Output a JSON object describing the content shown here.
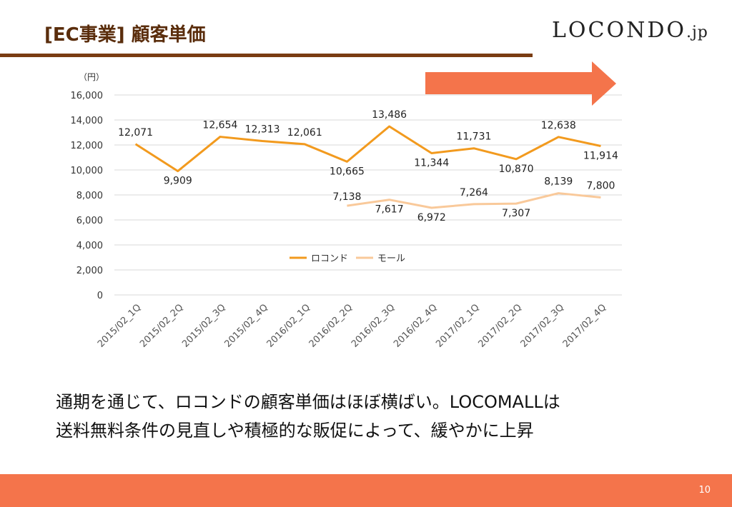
{
  "header": {
    "title": "[EC事業] 顧客単価",
    "logo_main": "LOCONDO",
    "logo_suffix": ".jp"
  },
  "chart_data": {
    "type": "line",
    "ylabel": "（円）",
    "ylim": [
      0,
      16000
    ],
    "yticks": [
      0,
      2000,
      4000,
      6000,
      8000,
      10000,
      12000,
      14000,
      16000
    ],
    "grid": true,
    "legend_position": "inside-center",
    "categories": [
      "2015/02_1Q",
      "2015/02_2Q",
      "2015/02_3Q",
      "2015/02_4Q",
      "2016/02_1Q",
      "2016/02_2Q",
      "2016/02_3Q",
      "2016/02_4Q",
      "2017/02_1Q",
      "2017/02_2Q",
      "2017/02_3Q",
      "2017/02_4Q"
    ],
    "series": [
      {
        "name": "ロコンド",
        "color": "#f29a1e",
        "values": [
          12071,
          9909,
          12654,
          12313,
          12061,
          10665,
          13486,
          11344,
          11731,
          10870,
          12638,
          11914
        ]
      },
      {
        "name": "モール",
        "color": "#f9c99a",
        "values": [
          null,
          null,
          null,
          null,
          null,
          7138,
          7617,
          6972,
          7264,
          7307,
          8139,
          7800
        ]
      }
    ],
    "trend_arrow_color": "#f4744b"
  },
  "caption": {
    "line1": "通期を通じて、ロコンドの顧客単価はほぼ横ばい。LOCOMALLは",
    "line2": "送料無料条件の見直しや積極的な販促によって、緩やかに上昇"
  },
  "footer": {
    "page_number": "10",
    "bar_color": "#f4744b"
  }
}
